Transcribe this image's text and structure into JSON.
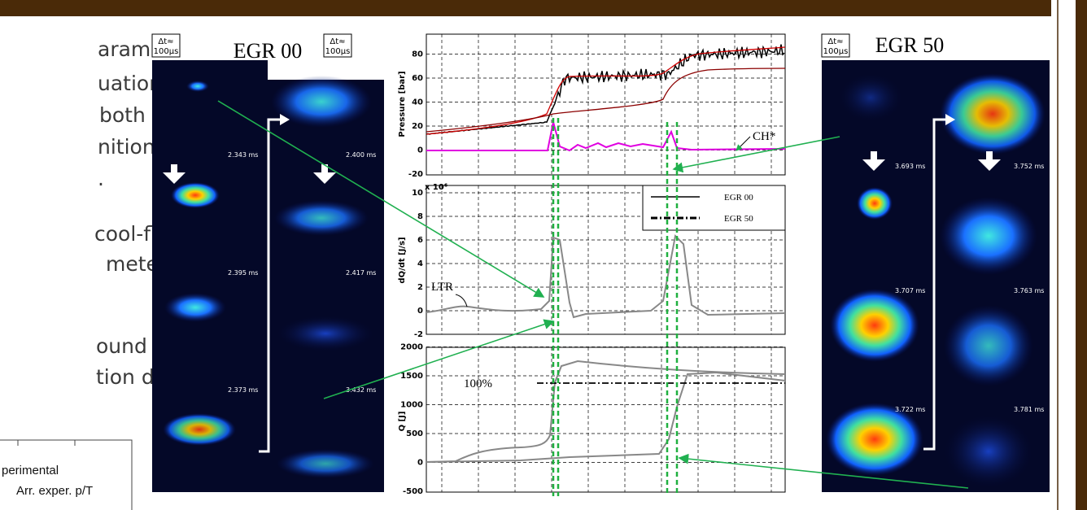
{
  "text_lines": [
    "arame-",
    "uation of",
    "both LTR",
    "nition de-",
    ".",
    "cool-flame",
    "meters,",
    "ound to be",
    "tion delay."
  ],
  "legend_box": {
    "entries": [
      "perimental",
      "Arr. exper. p/T"
    ]
  },
  "left_panel": {
    "title": "EGR 00",
    "dt_label_1": [
      "Δt≈",
      "100µs"
    ],
    "dt_label_2": [
      "Δt≈",
      "100µs"
    ],
    "timestamps": [
      "2.343 ms",
      "2.400 ms",
      "2.395 ms",
      "2.417 ms",
      "2.373 ms",
      "3.432 ms"
    ]
  },
  "right_panel": {
    "title": "EGR 50",
    "dt_label": [
      "Δt≈",
      "100µs"
    ],
    "timestamps": [
      "3.693 ms",
      "3.752 ms",
      "3.707 ms",
      "3.763 ms",
      "3.722 ms",
      "3.781 ms"
    ]
  },
  "plot": {
    "pressure": {
      "ylabel": "Pressure [bar]",
      "yticks": [
        "-20",
        "0",
        "20",
        "40",
        "60",
        "80"
      ],
      "annotation": "CH*"
    },
    "heat_release_rate": {
      "ylabel": "dQ/dt [J/s]",
      "multiplier": "x 10⁶",
      "yticks": [
        "-2",
        "0",
        "2",
        "4",
        "6",
        "8",
        "10"
      ],
      "annotation": "LTR",
      "legend": [
        "EGR 00",
        "EGR 50"
      ]
    },
    "heat_release": {
      "ylabel": "Q [J]",
      "yticks": [
        "-500",
        "0",
        "500",
        "1000",
        "1500",
        "2000"
      ],
      "annotation": "100%"
    }
  }
}
